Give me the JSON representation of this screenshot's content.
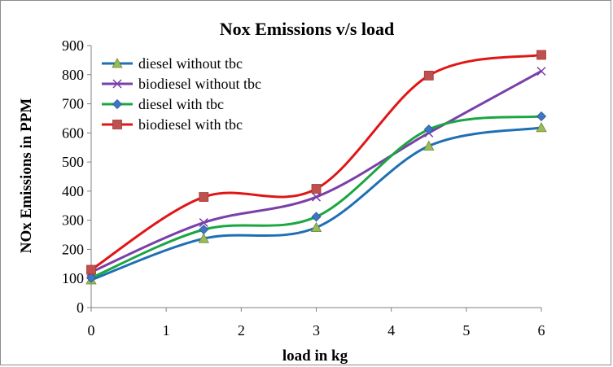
{
  "chart_data": {
    "type": "line",
    "title": "Nox Emissions v/s load",
    "xlabel": "load in kg",
    "ylabel": "NOx Emissions in PPM",
    "x": [
      0,
      1.5,
      3,
      4.5,
      6
    ],
    "xlim": [
      0,
      6
    ],
    "ylim": [
      0,
      900
    ],
    "xticks": [
      "0",
      "1",
      "2",
      "3",
      "4",
      "5",
      "6"
    ],
    "yticks": [
      "0",
      "100",
      "200",
      "300",
      "400",
      "500",
      "600",
      "700",
      "800",
      "900"
    ],
    "grid": false,
    "smooth": true,
    "legend_position": "top-left",
    "series": [
      {
        "name": "diesel without tbc",
        "values": [
          95,
          237,
          275,
          555,
          618
        ],
        "color": "#1f6fb4",
        "marker": "triangle",
        "marker_color": "#9bbb59"
      },
      {
        "name": "biodiesel without tbc",
        "values": [
          122,
          292,
          380,
          600,
          812
        ],
        "color": "#7a3fa8",
        "marker": "x",
        "marker_color": "#7a3fa8"
      },
      {
        "name": "diesel with tbc",
        "values": [
          102,
          268,
          312,
          612,
          657
        ],
        "color": "#1aa642",
        "marker": "diamond",
        "marker_color": "#3f76c2"
      },
      {
        "name": "biodiesel with tbc",
        "values": [
          130,
          380,
          408,
          797,
          868
        ],
        "color": "#e01616",
        "marker": "square",
        "marker_color": "#c0504d"
      }
    ]
  }
}
